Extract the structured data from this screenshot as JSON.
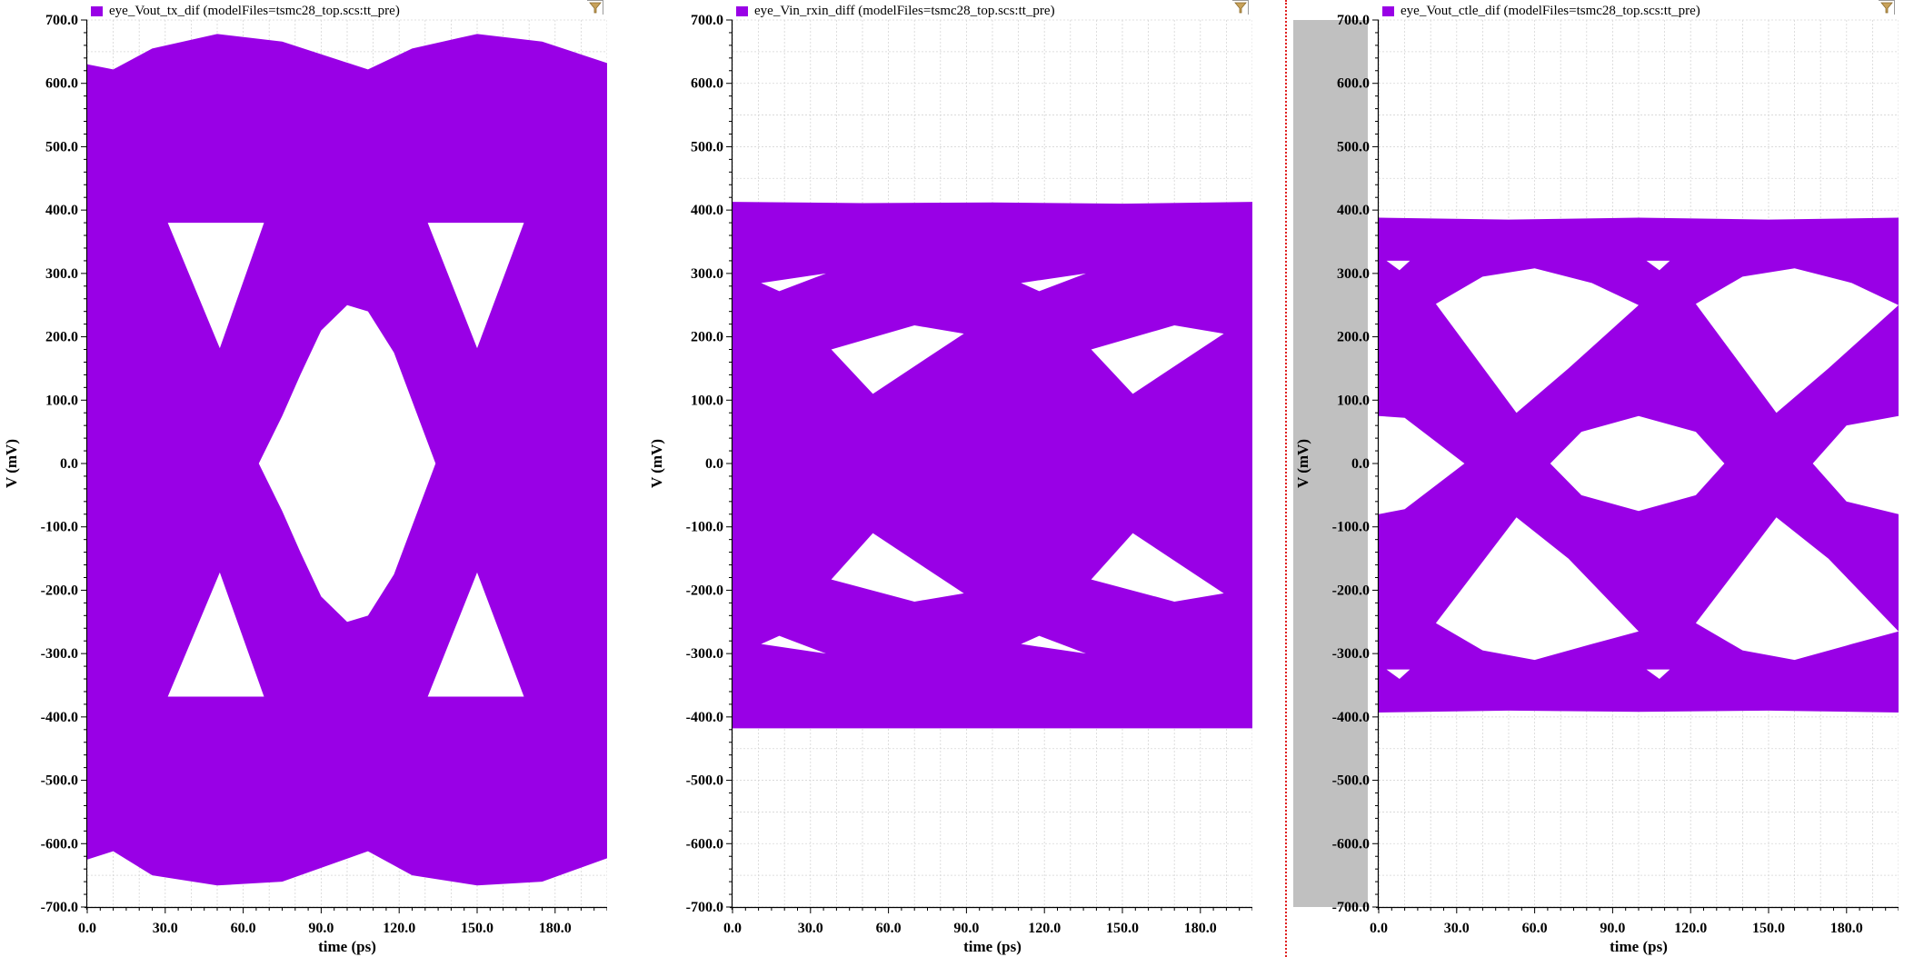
{
  "colors": {
    "trace": "#9900e6",
    "grid": "#d6d6d6",
    "axis": "#000000",
    "shade": "#c0c0c0",
    "divider": "#e02020",
    "filter": "#c8a25a"
  },
  "icons": {
    "filter": "filter-funnel-icon"
  },
  "chart_data": [
    {
      "type": "area",
      "legend": "eye_Vout_tx_dif (modelFiles=tsmc28_top.scs:tt_pre)",
      "xlabel": "time (ps)",
      "ylabel": "V (mV)",
      "xlim": [
        0,
        200
      ],
      "ylim": [
        -700,
        700
      ],
      "xticks": [
        "0.0",
        "30.0",
        "60.0",
        "90.0",
        "120.0",
        "150.0",
        "180.0"
      ],
      "yticks": [
        "700.0",
        "600.0",
        "500.0",
        "400.0",
        "300.0",
        "200.0",
        "100.0",
        "0.0",
        "-100.0",
        "-200.0",
        "-300.0",
        "-400.0",
        "-500.0",
        "-600.0",
        "-700.0"
      ],
      "envelope_top": [
        [
          0,
          630
        ],
        [
          10,
          622
        ],
        [
          25,
          655
        ],
        [
          50,
          678
        ],
        [
          75,
          666
        ],
        [
          108,
          622
        ],
        [
          125,
          655
        ],
        [
          150,
          678
        ],
        [
          175,
          666
        ],
        [
          200,
          632
        ]
      ],
      "envelope_bottom": [
        [
          0,
          -625
        ],
        [
          10,
          -612
        ],
        [
          25,
          -650
        ],
        [
          50,
          -666
        ],
        [
          75,
          -660
        ],
        [
          108,
          -612
        ],
        [
          125,
          -650
        ],
        [
          150,
          -666
        ],
        [
          175,
          -660
        ],
        [
          200,
          -623
        ]
      ],
      "eye_openings": [
        [
          [
            31,
            380
          ],
          [
            68,
            380
          ],
          [
            51,
            182
          ]
        ],
        [
          [
            131,
            380
          ],
          [
            168,
            380
          ],
          [
            150,
            182
          ]
        ],
        [
          [
            31,
            -368
          ],
          [
            68,
            -368
          ],
          [
            51,
            -172
          ]
        ],
        [
          [
            131,
            -368
          ],
          [
            168,
            -368
          ],
          [
            150,
            -172
          ]
        ],
        [
          [
            66,
            0
          ],
          [
            75,
            75
          ],
          [
            82,
            140
          ],
          [
            90,
            210
          ],
          [
            100,
            250
          ],
          [
            108,
            240
          ],
          [
            118,
            175
          ],
          [
            134,
            0
          ],
          [
            118,
            -175
          ],
          [
            108,
            -240
          ],
          [
            100,
            -250
          ],
          [
            90,
            -210
          ],
          [
            82,
            -140
          ],
          [
            75,
            -75
          ]
        ]
      ]
    },
    {
      "type": "area",
      "legend": "eye_Vin_rxin_diff (modelFiles=tsmc28_top.scs:tt_pre)",
      "xlabel": "time (ps)",
      "ylabel": "V (mV)",
      "xlim": [
        0,
        200
      ],
      "ylim": [
        -700,
        700
      ],
      "xticks": [
        "0.0",
        "30.0",
        "60.0",
        "90.0",
        "120.0",
        "150.0",
        "180.0"
      ],
      "yticks": [
        "700.0",
        "600.0",
        "500.0",
        "400.0",
        "300.0",
        "200.0",
        "100.0",
        "0.0",
        "-100.0",
        "-200.0",
        "-300.0",
        "-400.0",
        "-500.0",
        "-600.0",
        "-700.0"
      ],
      "envelope_top": [
        [
          0,
          413
        ],
        [
          50,
          411
        ],
        [
          100,
          412
        ],
        [
          150,
          410
        ],
        [
          200,
          413
        ]
      ],
      "envelope_bottom": [
        [
          0,
          -418
        ],
        [
          50,
          -418
        ],
        [
          100,
          -418
        ],
        [
          150,
          -418
        ],
        [
          200,
          -418
        ]
      ],
      "eye_openings": [
        [
          [
            11,
            285
          ],
          [
            18,
            272
          ],
          [
            36,
            300
          ]
        ],
        [
          [
            38,
            180
          ],
          [
            54,
            110
          ],
          [
            89,
            205
          ],
          [
            70,
            218
          ]
        ],
        [
          [
            38,
            -183
          ],
          [
            54,
            -110
          ],
          [
            89,
            -205
          ],
          [
            70,
            -218
          ]
        ],
        [
          [
            11,
            -285
          ],
          [
            18,
            -272
          ],
          [
            36,
            -300
          ]
        ],
        [
          [
            111,
            285
          ],
          [
            118,
            272
          ],
          [
            136,
            300
          ]
        ],
        [
          [
            138,
            180
          ],
          [
            154,
            110
          ],
          [
            189,
            205
          ],
          [
            170,
            218
          ]
        ],
        [
          [
            138,
            -183
          ],
          [
            154,
            -110
          ],
          [
            189,
            -205
          ],
          [
            170,
            -218
          ]
        ],
        [
          [
            111,
            -285
          ],
          [
            118,
            -272
          ],
          [
            136,
            -300
          ]
        ]
      ]
    },
    {
      "type": "area",
      "legend": "eye_Vout_ctle_dif (modelFiles=tsmc28_top.scs:tt_pre)",
      "xlabel": "time (ps)",
      "ylabel": "V (mV)",
      "xlim": [
        0,
        200
      ],
      "ylim": [
        -700,
        700
      ],
      "xticks": [
        "0.0",
        "30.0",
        "60.0",
        "90.0",
        "120.0",
        "150.0",
        "180.0"
      ],
      "yticks": [
        "700.0",
        "600.0",
        "500.0",
        "400.0",
        "300.0",
        "200.0",
        "100.0",
        "0.0",
        "-100.0",
        "-200.0",
        "-300.0",
        "-400.0",
        "-500.0",
        "-600.0",
        "-700.0"
      ],
      "envelope_top": [
        [
          0,
          388
        ],
        [
          50,
          385
        ],
        [
          100,
          388
        ],
        [
          150,
          385
        ],
        [
          200,
          388
        ]
      ],
      "envelope_bottom": [
        [
          0,
          -393
        ],
        [
          50,
          -390
        ],
        [
          100,
          -392
        ],
        [
          150,
          -390
        ],
        [
          200,
          -393
        ]
      ],
      "eye_openings": [
        [
          [
            3,
            320
          ],
          [
            12,
            320
          ],
          [
            8,
            305
          ]
        ],
        [
          [
            103,
            320
          ],
          [
            112,
            320
          ],
          [
            108,
            305
          ]
        ],
        [
          [
            3,
            -325
          ],
          [
            12,
            -325
          ],
          [
            8,
            -340
          ]
        ],
        [
          [
            103,
            -325
          ],
          [
            112,
            -325
          ],
          [
            108,
            -340
          ]
        ],
        [
          [
            22,
            252
          ],
          [
            40,
            295
          ],
          [
            60,
            308
          ],
          [
            82,
            285
          ],
          [
            100,
            250
          ],
          [
            73,
            150
          ],
          [
            53,
            80
          ]
        ],
        [
          [
            122,
            252
          ],
          [
            140,
            295
          ],
          [
            160,
            308
          ],
          [
            182,
            285
          ],
          [
            200,
            250
          ],
          [
            173,
            150
          ],
          [
            153,
            80
          ]
        ],
        [
          [
            22,
            -252
          ],
          [
            40,
            -295
          ],
          [
            60,
            -310
          ],
          [
            82,
            -285
          ],
          [
            100,
            -265
          ],
          [
            73,
            -150
          ],
          [
            53,
            -85
          ]
        ],
        [
          [
            122,
            -252
          ],
          [
            140,
            -295
          ],
          [
            160,
            -310
          ],
          [
            182,
            -285
          ],
          [
            200,
            -265
          ],
          [
            173,
            -150
          ],
          [
            153,
            -85
          ]
        ],
        [
          [
            66,
            0
          ],
          [
            78,
            50
          ],
          [
            100,
            75
          ],
          [
            122,
            50
          ],
          [
            133,
            0
          ],
          [
            122,
            -50
          ],
          [
            100,
            -75
          ],
          [
            78,
            -50
          ]
        ],
        [
          [
            0,
            75
          ],
          [
            10,
            72
          ],
          [
            33,
            0
          ],
          [
            10,
            -72
          ],
          [
            0,
            -80
          ]
        ],
        [
          [
            167,
            0
          ],
          [
            180,
            60
          ],
          [
            200,
            75
          ],
          [
            200,
            -80
          ],
          [
            180,
            -60
          ]
        ]
      ]
    }
  ]
}
